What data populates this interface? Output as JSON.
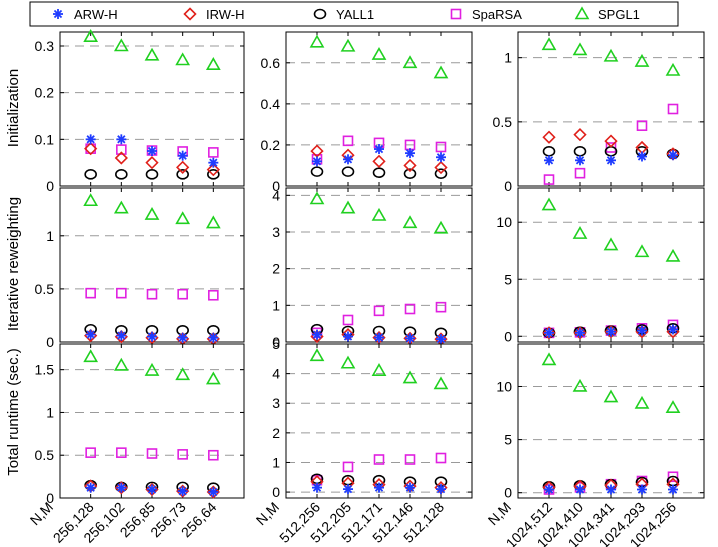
{
  "legend": {
    "entries": [
      {
        "name": "ARW-H",
        "marker": "asterisk",
        "color": "#1f3cff"
      },
      {
        "name": "IRW-H",
        "marker": "diamond",
        "color": "#e0201a"
      },
      {
        "name": "YALL1",
        "marker": "circle",
        "color": "#000000"
      },
      {
        "name": "SpaRSA",
        "marker": "square",
        "color": "#e020e0"
      },
      {
        "name": "SPGL1",
        "marker": "triangle",
        "color": "#20d020"
      }
    ]
  },
  "row_labels": [
    "Initialization",
    "Iterative reweighting",
    "Total runtime (sec.)"
  ],
  "nm_label": "N,M",
  "chart_data": [
    {
      "type": "scatter",
      "row": 0,
      "col": 0,
      "ylabel": "Initialization",
      "categories": [
        "256,128",
        "256,102",
        "256,85",
        "256,73",
        "256,64"
      ],
      "ylim": [
        0,
        0.33
      ],
      "yticks": [
        0,
        0.1,
        0.2,
        0.3
      ],
      "ytick_labels": [
        "0",
        "0.1",
        "0.2",
        "0.3"
      ],
      "series": [
        {
          "name": "ARW-H",
          "values": [
            0.1,
            0.1,
            0.075,
            0.065,
            0.05
          ]
        },
        {
          "name": "IRW-H",
          "values": [
            0.08,
            0.06,
            0.05,
            0.04,
            0.035
          ]
        },
        {
          "name": "YALL1",
          "values": [
            0.025,
            0.025,
            0.025,
            0.025,
            0.025
          ]
        },
        {
          "name": "SpaRSA",
          "values": [
            0.08,
            0.078,
            0.076,
            0.074,
            0.072
          ]
        },
        {
          "name": "SPGL1",
          "values": [
            0.32,
            0.3,
            0.28,
            0.27,
            0.26
          ]
        }
      ]
    },
    {
      "type": "scatter",
      "row": 0,
      "col": 1,
      "categories": [
        "512,256",
        "512,205",
        "512,171",
        "512,146",
        "512,128"
      ],
      "ylim": [
        0,
        0.75
      ],
      "yticks": [
        0,
        0.2,
        0.4,
        0.6
      ],
      "ytick_labels": [
        "0",
        "0.2",
        "0.4",
        "0.6"
      ],
      "series": [
        {
          "name": "ARW-H",
          "values": [
            0.12,
            0.13,
            0.18,
            0.16,
            0.14
          ]
        },
        {
          "name": "IRW-H",
          "values": [
            0.17,
            0.15,
            0.12,
            0.1,
            0.09
          ]
        },
        {
          "name": "YALL1",
          "values": [
            0.07,
            0.07,
            0.065,
            0.06,
            0.06
          ]
        },
        {
          "name": "SpaRSA",
          "values": [
            0.13,
            0.22,
            0.21,
            0.2,
            0.19
          ]
        },
        {
          "name": "SPGL1",
          "values": [
            0.7,
            0.68,
            0.64,
            0.6,
            0.55
          ]
        }
      ]
    },
    {
      "type": "scatter",
      "row": 0,
      "col": 2,
      "categories": [
        "1024,512",
        "1024,410",
        "1024,341",
        "1024,293",
        "1024,256"
      ],
      "ylim": [
        0,
        1.2
      ],
      "yticks": [
        0,
        0.5,
        1
      ],
      "ytick_labels": [
        "0",
        "0.5",
        "1"
      ],
      "series": [
        {
          "name": "ARW-H",
          "values": [
            0.2,
            0.2,
            0.2,
            0.23,
            0.24
          ]
        },
        {
          "name": "IRW-H",
          "values": [
            0.38,
            0.4,
            0.35,
            0.3,
            0.25
          ]
        },
        {
          "name": "YALL1",
          "values": [
            0.27,
            0.27,
            0.27,
            0.27,
            0.25
          ]
        },
        {
          "name": "SpaRSA",
          "values": [
            0.05,
            0.1,
            0.3,
            0.47,
            0.6
          ]
        },
        {
          "name": "SPGL1",
          "values": [
            1.1,
            1.06,
            1.01,
            0.97,
            0.9
          ]
        }
      ]
    },
    {
      "type": "scatter",
      "row": 1,
      "col": 0,
      "ylabel": "Iterative reweighting",
      "categories": [
        "256,128",
        "256,102",
        "256,85",
        "256,73",
        "256,64"
      ],
      "ylim": [
        0,
        1.45
      ],
      "yticks": [
        0,
        0.5,
        1
      ],
      "ytick_labels": [
        "0",
        "0.5",
        "1"
      ],
      "series": [
        {
          "name": "ARW-H",
          "values": [
            0.07,
            0.06,
            0.05,
            0.04,
            0.04
          ]
        },
        {
          "name": "IRW-H",
          "values": [
            0.06,
            0.05,
            0.04,
            0.03,
            0.03
          ]
        },
        {
          "name": "YALL1",
          "values": [
            0.12,
            0.11,
            0.11,
            0.11,
            0.11
          ]
        },
        {
          "name": "SpaRSA",
          "values": [
            0.46,
            0.46,
            0.45,
            0.45,
            0.44
          ]
        },
        {
          "name": "SPGL1",
          "values": [
            1.33,
            1.26,
            1.2,
            1.16,
            1.12
          ]
        }
      ]
    },
    {
      "type": "scatter",
      "row": 1,
      "col": 1,
      "categories": [
        "512,256",
        "512,205",
        "512,171",
        "512,146",
        "512,128"
      ],
      "ylim": [
        0,
        4.2
      ],
      "yticks": [
        0,
        1,
        2,
        3,
        4
      ],
      "ytick_labels": [
        "0",
        "1",
        "2",
        "3",
        "4"
      ],
      "series": [
        {
          "name": "ARW-H",
          "values": [
            0.2,
            0.15,
            0.12,
            0.1,
            0.08
          ]
        },
        {
          "name": "IRW-H",
          "values": [
            0.15,
            0.2,
            0.12,
            0.1,
            0.08
          ]
        },
        {
          "name": "YALL1",
          "values": [
            0.35,
            0.3,
            0.3,
            0.28,
            0.25
          ]
        },
        {
          "name": "SpaRSA",
          "values": [
            0.25,
            0.6,
            0.85,
            0.9,
            0.95
          ]
        },
        {
          "name": "SPGL1",
          "values": [
            3.9,
            3.65,
            3.45,
            3.25,
            3.1
          ]
        }
      ]
    },
    {
      "type": "scatter",
      "row": 1,
      "col": 2,
      "categories": [
        "1024,512",
        "1024,410",
        "1024,341",
        "1024,293",
        "1024,256"
      ],
      "ylim": [
        -0.5,
        13
      ],
      "yticks": [
        0,
        5,
        10
      ],
      "ytick_labels": [
        "0",
        "5",
        "10"
      ],
      "series": [
        {
          "name": "ARW-H",
          "values": [
            0.3,
            0.3,
            0.4,
            0.5,
            0.6
          ]
        },
        {
          "name": "IRW-H",
          "values": [
            0.3,
            0.3,
            0.4,
            0.4,
            0.4
          ]
        },
        {
          "name": "YALL1",
          "values": [
            0.3,
            0.4,
            0.5,
            0.6,
            0.7
          ]
        },
        {
          "name": "SpaRSA",
          "values": [
            0.3,
            0.35,
            0.5,
            0.7,
            1.0
          ]
        },
        {
          "name": "SPGL1",
          "values": [
            11.5,
            9.0,
            8.0,
            7.4,
            7.0
          ]
        }
      ]
    },
    {
      "type": "scatter",
      "row": 2,
      "col": 0,
      "ylabel": "Total runtime (sec.)",
      "categories": [
        "256,128",
        "256,102",
        "256,85",
        "256,73",
        "256,64"
      ],
      "ylim": [
        0,
        1.8
      ],
      "yticks": [
        0,
        0.5,
        1,
        1.5
      ],
      "ytick_labels": [
        "0",
        "0.5",
        "1",
        "1.5"
      ],
      "series": [
        {
          "name": "ARW-H",
          "values": [
            0.12,
            0.12,
            0.1,
            0.08,
            0.07
          ]
        },
        {
          "name": "IRW-H",
          "values": [
            0.14,
            0.12,
            0.1,
            0.08,
            0.07
          ]
        },
        {
          "name": "YALL1",
          "values": [
            0.15,
            0.13,
            0.13,
            0.13,
            0.12
          ]
        },
        {
          "name": "SpaRSA",
          "values": [
            0.53,
            0.53,
            0.52,
            0.51,
            0.5
          ]
        },
        {
          "name": "SPGL1",
          "values": [
            1.65,
            1.55,
            1.49,
            1.44,
            1.39
          ]
        }
      ]
    },
    {
      "type": "scatter",
      "row": 2,
      "col": 1,
      "categories": [
        "512,256",
        "512,205",
        "512,171",
        "512,146",
        "512,128"
      ],
      "ylim": [
        -0.2,
        5
      ],
      "yticks": [
        0,
        1,
        2,
        3,
        4,
        5
      ],
      "ytick_labels": [
        "0",
        "1",
        "2",
        "3",
        "4",
        "5"
      ],
      "series": [
        {
          "name": "ARW-H",
          "values": [
            0.15,
            0.1,
            0.15,
            0.15,
            0.1
          ]
        },
        {
          "name": "IRW-H",
          "values": [
            0.35,
            0.3,
            0.25,
            0.2,
            0.15
          ]
        },
        {
          "name": "YALL1",
          "values": [
            0.45,
            0.4,
            0.4,
            0.35,
            0.35
          ]
        },
        {
          "name": "SpaRSA",
          "values": [
            0.4,
            0.85,
            1.1,
            1.1,
            1.15
          ]
        },
        {
          "name": "SPGL1",
          "values": [
            4.6,
            4.35,
            4.1,
            3.85,
            3.65
          ]
        }
      ]
    },
    {
      "type": "scatter",
      "row": 2,
      "col": 2,
      "categories": [
        "1024,512",
        "1024,410",
        "1024,341",
        "1024,293",
        "1024,256"
      ],
      "ylim": [
        -0.5,
        14
      ],
      "yticks": [
        0,
        5,
        10
      ],
      "ytick_labels": [
        "0",
        "5",
        "10"
      ],
      "series": [
        {
          "name": "ARW-H",
          "values": [
            0.3,
            0.3,
            0.3,
            0.3,
            0.3
          ]
        },
        {
          "name": "IRW-H",
          "values": [
            0.5,
            0.6,
            0.7,
            0.8,
            0.8
          ]
        },
        {
          "name": "YALL1",
          "values": [
            0.6,
            0.7,
            0.8,
            1.0,
            1.1
          ]
        },
        {
          "name": "SpaRSA",
          "values": [
            0.3,
            0.5,
            0.8,
            1.1,
            1.5
          ]
        },
        {
          "name": "SPGL1",
          "values": [
            12.5,
            10.0,
            9.0,
            8.4,
            8.0
          ]
        }
      ]
    }
  ]
}
